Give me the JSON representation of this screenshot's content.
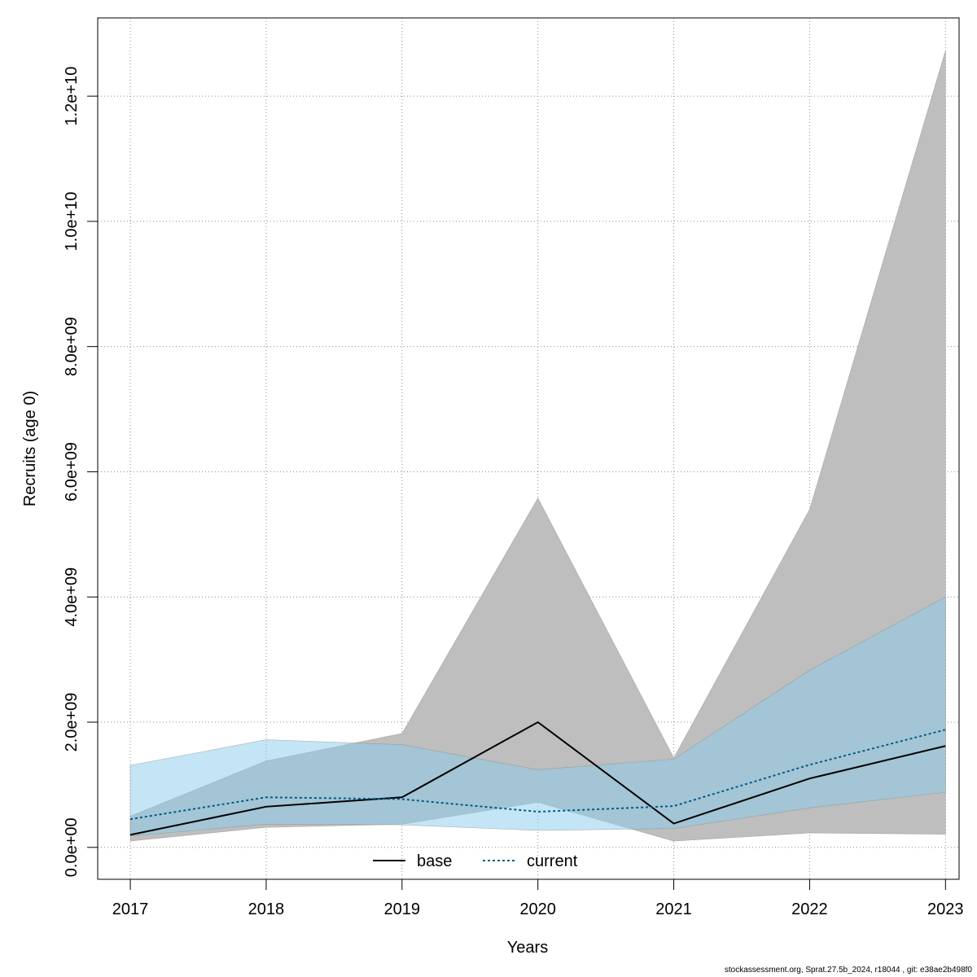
{
  "chart_data": {
    "type": "line",
    "xlabel": "Years",
    "ylabel": "Recruits (age 0)",
    "x": [
      2017,
      2018,
      2019,
      2020,
      2021,
      2022,
      2023
    ],
    "x_tick_labels": [
      "2017",
      "2018",
      "2019",
      "2020",
      "2021",
      "2022",
      "2023"
    ],
    "xlim": [
      2016.76,
      2023.1
    ],
    "y_ticks": [
      0,
      2000000000,
      4000000000,
      6000000000,
      8000000000,
      10000000000,
      12000000000
    ],
    "y_tick_labels": [
      "0.0e+00",
      "2.0e+09",
      "4.0e+09",
      "6.0e+09",
      "8.0e+09",
      "1.0e+10",
      "1.2e+10"
    ],
    "ylim": [
      -510000000,
      13250000000
    ],
    "grid": true,
    "legend_position": "bottom-center",
    "series": [
      {
        "name": "base",
        "line_style": "solid",
        "line_color": "#000000",
        "band_color": "#bebebe",
        "values": [
          200000000,
          650000000,
          800000000,
          2000000000,
          380000000,
          1100000000,
          1620000000
        ],
        "lower": [
          100000000,
          320000000,
          370000000,
          720000000,
          100000000,
          230000000,
          210000000
        ],
        "upper": [
          500000000,
          1380000000,
          1820000000,
          5580000000,
          1430000000,
          5400000000,
          12730000000
        ]
      },
      {
        "name": "current",
        "line_style": "dotted",
        "line_color": "#005a8c",
        "band_color": "#87cbec",
        "values": [
          450000000,
          800000000,
          770000000,
          570000000,
          660000000,
          1320000000,
          1880000000
        ],
        "lower": [
          180000000,
          370000000,
          360000000,
          270000000,
          300000000,
          630000000,
          880000000
        ],
        "upper": [
          1310000000,
          1720000000,
          1640000000,
          1240000000,
          1410000000,
          2830000000,
          4000000000
        ]
      }
    ]
  },
  "footer_text": "stockassessment.org, Sprat.27.5b_2024, r18044 , git: e38ae2b498f0"
}
